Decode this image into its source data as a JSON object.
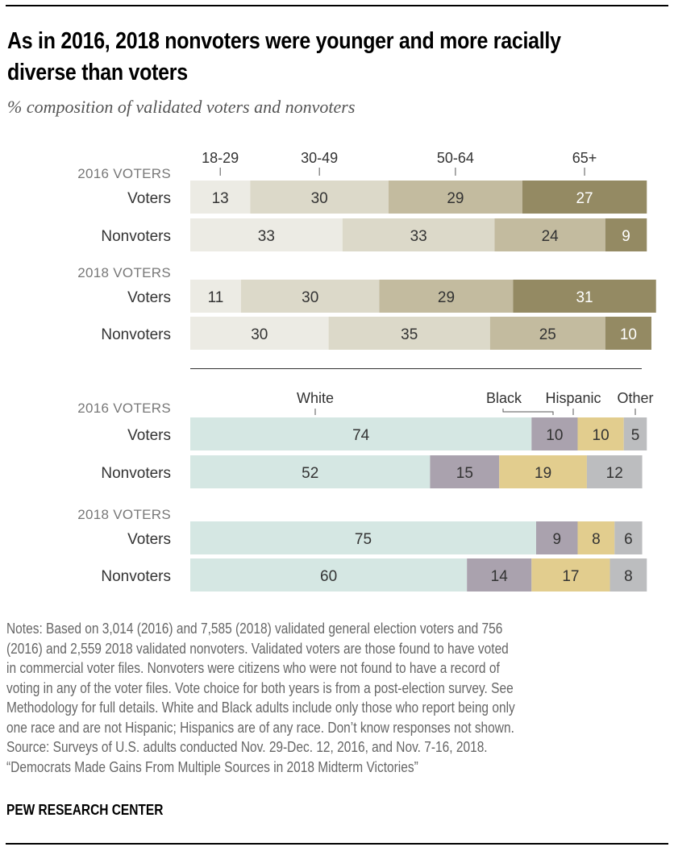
{
  "title": "As in 2016, 2018 nonvoters were younger and more racially diverse than voters",
  "subtitle": "% composition of validated voters and nonvoters",
  "chart_data": [
    {
      "type": "bar",
      "orientation": "horizontal",
      "stacked": true,
      "name": "age",
      "categories_header": [
        "18-29",
        "30-49",
        "50-64",
        "65+"
      ],
      "colors": [
        "#ecebe4",
        "#dcd9c9",
        "#c3bb9f",
        "#948a63"
      ],
      "label_colors": [
        "#333333",
        "#333333",
        "#333333",
        "#ffffff"
      ],
      "groups": [
        {
          "label": "2016 VOTERS",
          "rows": [
            {
              "label": "Voters",
              "values": [
                13,
                30,
                29,
                27
              ]
            },
            {
              "label": "Nonvoters",
              "values": [
                33,
                33,
                24,
                9
              ]
            }
          ]
        },
        {
          "label": "2018 VOTERS",
          "rows": [
            {
              "label": "Voters",
              "values": [
                11,
                30,
                29,
                31
              ]
            },
            {
              "label": "Nonvoters",
              "values": [
                30,
                35,
                25,
                10
              ]
            }
          ]
        }
      ],
      "xlim": [
        0,
        100
      ]
    },
    {
      "type": "bar",
      "orientation": "horizontal",
      "stacked": true,
      "name": "race",
      "categories_header": [
        "White",
        "Black",
        "Hispanic",
        "Other"
      ],
      "colors": [
        "#d5e7e3",
        "#aaa2ae",
        "#e2cd8e",
        "#bcbdbf"
      ],
      "label_colors": [
        "#333333",
        "#333333",
        "#333333",
        "#333333"
      ],
      "groups": [
        {
          "label": "2016 VOTERS",
          "rows": [
            {
              "label": "Voters",
              "values": [
                74,
                10,
                10,
                5
              ]
            },
            {
              "label": "Nonvoters",
              "values": [
                52,
                15,
                19,
                12
              ]
            }
          ]
        },
        {
          "label": "2018 VOTERS",
          "rows": [
            {
              "label": "Voters",
              "values": [
                75,
                9,
                8,
                6
              ]
            },
            {
              "label": "Nonvoters",
              "values": [
                60,
                14,
                17,
                8
              ]
            }
          ]
        }
      ],
      "xlim": [
        0,
        100
      ]
    }
  ],
  "notes": [
    "Notes: Based on 3,014 (2016) and 7,585 (2018) validated general election voters and 756",
    "(2016) and 2,559 2018 validated nonvoters. Validated voters are those found to have voted",
    "in commercial voter files. Nonvoters were citizens who were not found to have a record of",
    "voting in any of the voter files. Vote choice for both years is from a post-election survey. See",
    "Methodology for full details. White and Black adults include only those who report being only",
    "one race and are not Hispanic; Hispanics are of any race. Don’t know responses not shown.",
    "Source: Surveys of U.S. adults conducted Nov. 29-Dec. 12, 2016, and Nov. 7-16, 2018.",
    "“Democrats Made Gains From Multiple Sources in 2018 Midterm Victories”"
  ],
  "brand": "PEW RESEARCH CENTER"
}
